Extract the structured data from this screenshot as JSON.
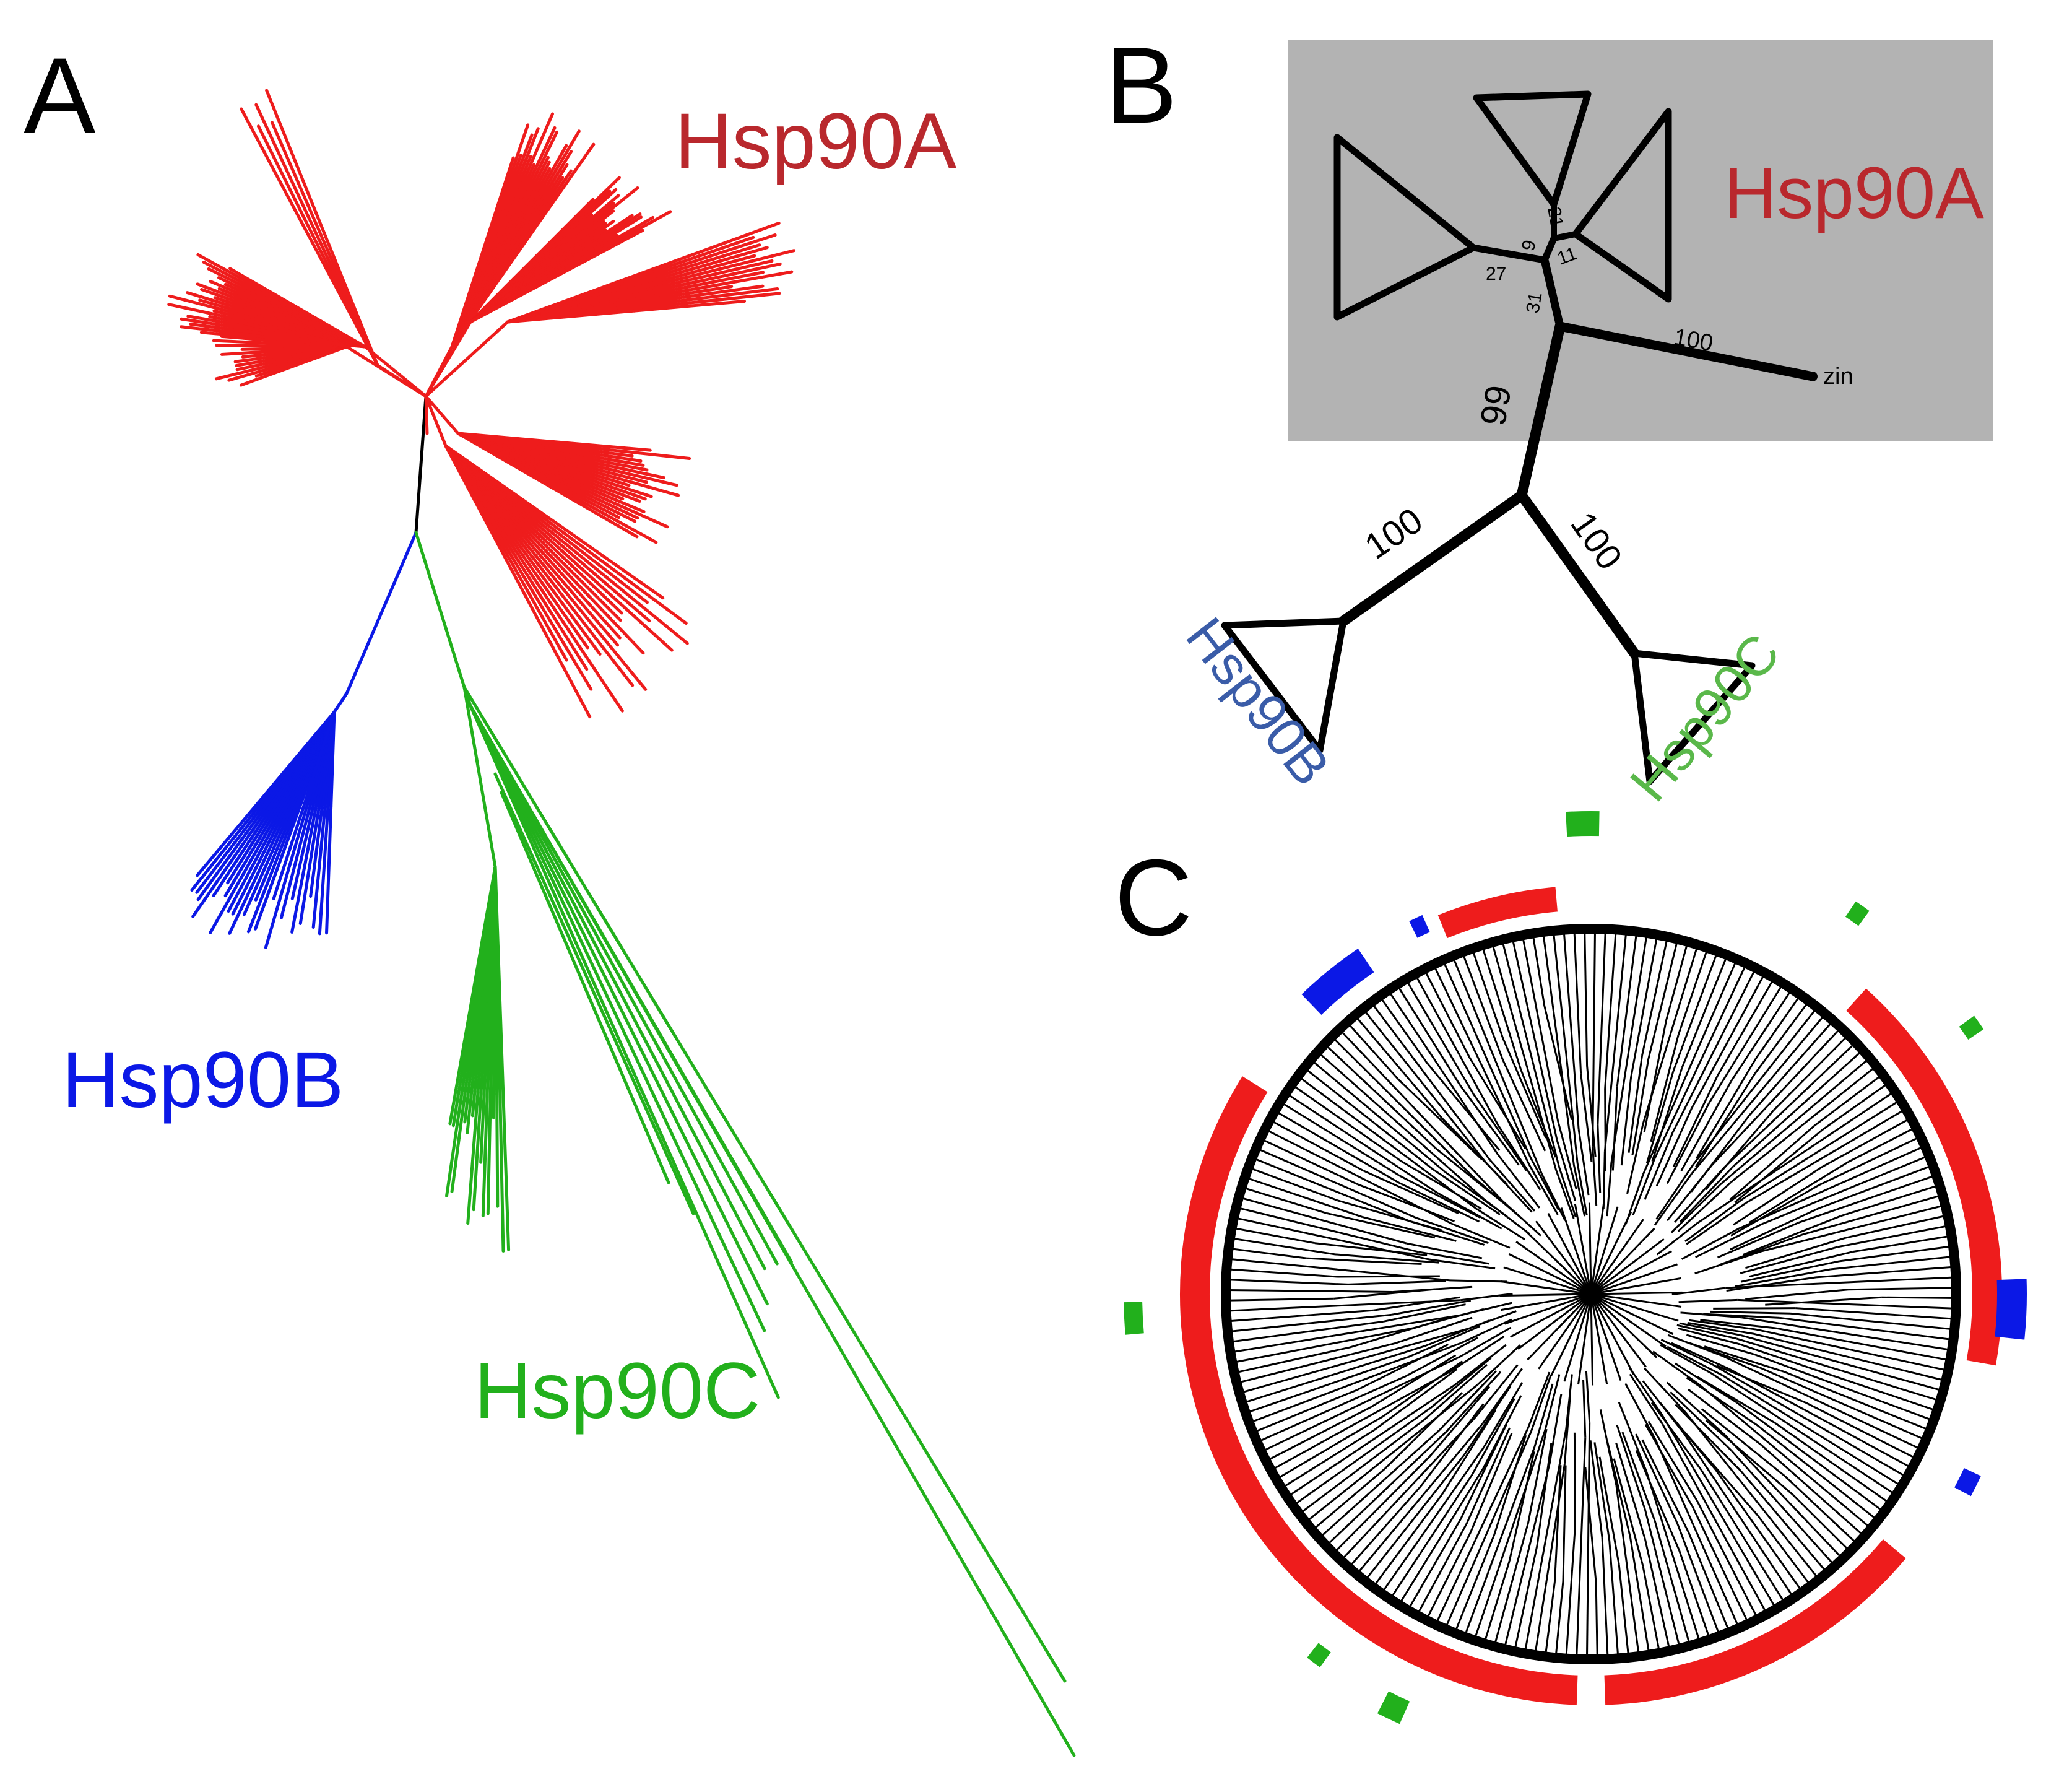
{
  "colors": {
    "hsp90a": "#ee1c1c",
    "hsp90a_label": "#b9282d",
    "hsp90b": "#0b18e6",
    "hsp90b_label_B": "#3a5ca8",
    "hsp90c": "#22b01c",
    "hsp90c_label_B": "#5ab84a",
    "tree_black": "#000000",
    "box_grey": "#b3b3b3"
  },
  "panel_a": {
    "letter": "A",
    "label_hsp90a": "Hsp90A",
    "label_hsp90b": "Hsp90B",
    "label_hsp90c": "Hsp90C"
  },
  "panel_b": {
    "letter": "B",
    "label_hsp90a": "Hsp90A",
    "label_hsp90b": "Hsp90B",
    "label_hsp90c": "Hsp90C",
    "leaf_zin": "zin",
    "support": {
      "s21": "21",
      "s9": "9",
      "s11": "11",
      "s27": "27",
      "s31": "31",
      "s100_zin": "100",
      "s99": "99",
      "s100_b": "100",
      "s100_c": "100"
    }
  },
  "panel_c": {
    "letter": "C"
  }
}
